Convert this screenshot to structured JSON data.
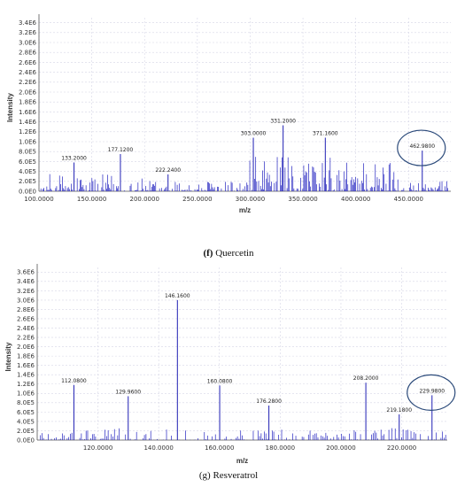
{
  "chart_data": [
    {
      "type": "bar",
      "caption_letter": "(f)",
      "caption_name": "Quercetin",
      "xlabel": "m/z",
      "ylabel": "Intensity",
      "xlim": [
        100,
        490
      ],
      "ylim": [
        0,
        3500000
      ],
      "x_ticks": [
        100,
        150,
        200,
        250,
        300,
        350,
        400,
        450
      ],
      "x_tick_labels": [
        "100.0000",
        "150.0000",
        "200.0000",
        "250.0000",
        "300.0000",
        "350.0000",
        "400.0000",
        "450.0000"
      ],
      "y_ticks": [
        0,
        200000,
        400000,
        600000,
        800000,
        1000000,
        1200000,
        1400000,
        1600000,
        1800000,
        2000000,
        2200000,
        2400000,
        2600000,
        2800000,
        3000000,
        3200000,
        3400000
      ],
      "y_tick_labels": [
        "0.0E0",
        "2.0E5",
        "4.0E5",
        "6.0E5",
        "8.0E5",
        "1.0E6",
        "1.2E6",
        "1.4E6",
        "1.6E6",
        "1.8E6",
        "2.0E6",
        "2.2E6",
        "2.4E6",
        "2.6E6",
        "2.8E6",
        "3.0E6",
        "3.2E6",
        "3.4E6"
      ],
      "labeled_peaks": [
        {
          "x": 133.2,
          "y": 580000,
          "label": "133.2000"
        },
        {
          "x": 177.12,
          "y": 750000,
          "label": "177.1200"
        },
        {
          "x": 222.24,
          "y": 340000,
          "label": "222.2400"
        },
        {
          "x": 303.0,
          "y": 1080000,
          "label": "303.0000"
        },
        {
          "x": 331.2,
          "y": 1330000,
          "label": "331.2000"
        },
        {
          "x": 371.16,
          "y": 1080000,
          "label": "371.1600"
        },
        {
          "x": 462.98,
          "y": 820000,
          "label": "462.9800"
        }
      ],
      "highlighted_peak": "462.9800"
    },
    {
      "type": "bar",
      "caption_letter": "(g)",
      "caption_name": "Resveratrol",
      "xlabel": "m/z",
      "ylabel": "Intensity",
      "xlim": [
        100,
        235
      ],
      "ylim": [
        0,
        3700000
      ],
      "x_ticks": [
        120,
        140,
        160,
        180,
        200,
        220
      ],
      "x_tick_labels": [
        "120.0000",
        "140.0000",
        "160.0000",
        "180.0000",
        "200.0000",
        "220.0000"
      ],
      "y_ticks": [
        0,
        200000,
        400000,
        600000,
        800000,
        1000000,
        1200000,
        1400000,
        1600000,
        1800000,
        2000000,
        2200000,
        2400000,
        2600000,
        2800000,
        3000000,
        3200000,
        3400000,
        3600000
      ],
      "y_tick_labels": [
        "0.0E0",
        "2.0E5",
        "4.0E5",
        "6.0E5",
        "8.0E5",
        "1.0E6",
        "1.2E6",
        "1.4E6",
        "1.6E6",
        "1.8E6",
        "2.0E6",
        "2.2E6",
        "2.4E6",
        "2.6E6",
        "2.8E6",
        "3.0E6",
        "3.2E6",
        "3.4E6",
        "3.6E6"
      ],
      "labeled_peaks": [
        {
          "x": 112.08,
          "y": 1180000,
          "label": "112.0800"
        },
        {
          "x": 129.96,
          "y": 940000,
          "label": "129.9600"
        },
        {
          "x": 146.16,
          "y": 3000000,
          "label": "146.1600"
        },
        {
          "x": 160.08,
          "y": 1170000,
          "label": "160.0800"
        },
        {
          "x": 176.28,
          "y": 740000,
          "label": "176.2800"
        },
        {
          "x": 208.2,
          "y": 1230000,
          "label": "208.2000"
        },
        {
          "x": 219.18,
          "y": 550000,
          "label": "219.1800"
        },
        {
          "x": 229.98,
          "y": 960000,
          "label": "229.9800"
        }
      ],
      "highlighted_peak": "229.9800"
    }
  ]
}
